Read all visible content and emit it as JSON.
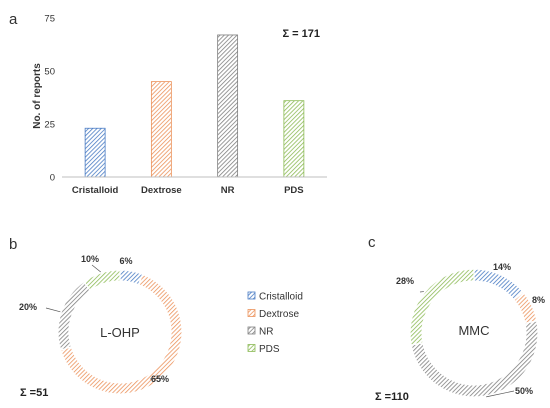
{
  "panels": {
    "a": "a",
    "b": "b",
    "c": "c"
  },
  "colors": {
    "Cristalloid": "#4a7cc4",
    "Dextrose": "#ec935c",
    "NR": "#808080",
    "PDS": "#8dbb57"
  },
  "chart_data": [
    {
      "type": "bar",
      "categories": [
        "Cristalloid",
        "Dextrose",
        "NR",
        "PDS"
      ],
      "values": [
        23,
        45,
        67,
        36
      ],
      "ylabel": "No. of reports",
      "ylim": [
        0,
        75
      ],
      "yticks": [
        "0",
        "25",
        "50",
        "75"
      ],
      "annotation": "Σ = 171",
      "grid": false,
      "pattern": "diagonal hatch"
    },
    {
      "type": "pie",
      "style": "donut",
      "center_label": "L-OHP",
      "labels": [
        "Cristalloid",
        "Dextrose",
        "NR",
        "PDS"
      ],
      "values": [
        6,
        65,
        20,
        10
      ],
      "value_labels": [
        "6%",
        "65%",
        "20%",
        "10%"
      ],
      "annotation": "Σ =51"
    },
    {
      "type": "pie",
      "style": "donut",
      "center_label": "MMC",
      "labels": [
        "Cristalloid",
        "Dextrose",
        "NR",
        "PDS"
      ],
      "values": [
        14,
        8,
        50,
        28
      ],
      "value_labels": [
        "14%",
        "8%",
        "50%",
        "28%"
      ],
      "annotation": "Σ =110"
    }
  ],
  "legend": {
    "placement": "between donuts",
    "items": [
      "Cristalloid",
      "Dextrose",
      "NR",
      "PDS"
    ]
  }
}
